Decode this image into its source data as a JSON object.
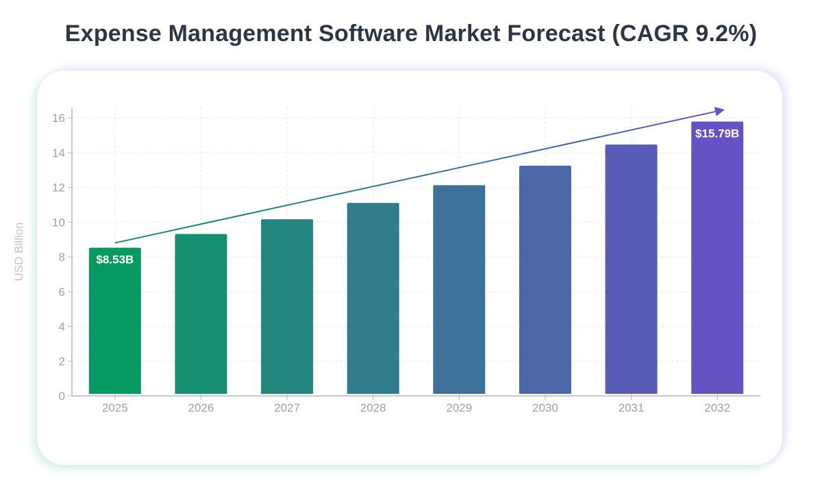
{
  "title": "Expense Management Software Market Forecast (CAGR 9.2%)",
  "chart_data": {
    "type": "bar",
    "title": "Expense Management Software Market Forecast (CAGR 9.2%)",
    "xlabel": "",
    "ylabel": "USD Billion",
    "ylim": [
      0,
      16.6
    ],
    "yticks": [
      0,
      2,
      4,
      6,
      8,
      10,
      12,
      14,
      16
    ],
    "grid": true,
    "categories": [
      "2025",
      "2026",
      "2027",
      "2028",
      "2029",
      "2030",
      "2031",
      "2032"
    ],
    "values": [
      8.53,
      9.32,
      10.17,
      11.11,
      12.13,
      13.25,
      14.47,
      15.79
    ],
    "data_labels": [
      {
        "index": 0,
        "text": "$8.53B"
      },
      {
        "index": 7,
        "text": "$15.79B"
      }
    ],
    "trend_arrow": true,
    "colors": {
      "start": "#069a62",
      "end": "#6752c4"
    }
  }
}
